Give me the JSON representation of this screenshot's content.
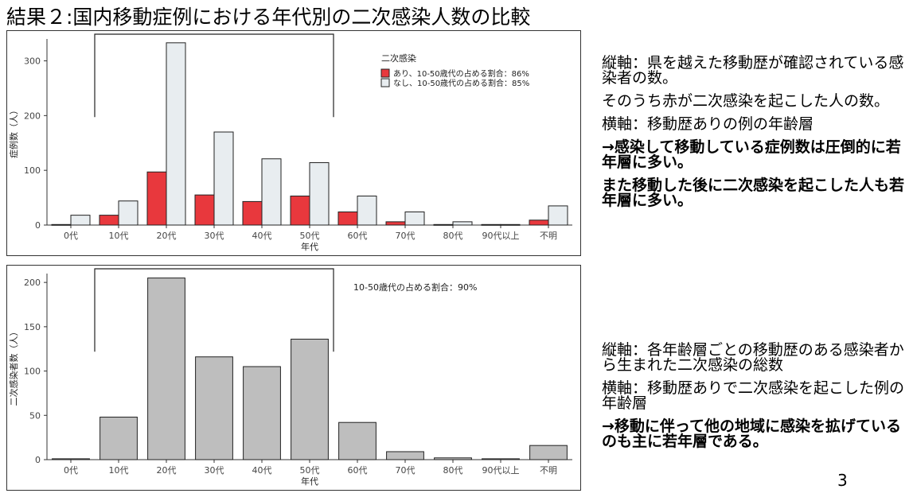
{
  "slide": {
    "title": "結果２:国内移動症例における年代別の二次感染人数の比較",
    "page_number": "3"
  },
  "descriptions": {
    "top": [
      {
        "text": "縦軸：県を越えた移動歴が確認されている感染者の数。",
        "bold": false
      },
      {
        "text": "そのうち赤が二次感染を起こした人の数。",
        "bold": false
      },
      {
        "text": "横軸：移動歴ありの例の年齢層",
        "bold": false
      },
      {
        "text": "→感染して移動している症例数は圧倒的に若年層に多い。",
        "bold": true
      },
      {
        "text": "また移動した後に二次感染を起こした人も若年層に多い。",
        "bold": true
      }
    ],
    "bottom": [
      {
        "text": "縦軸：各年齢層ごとの移動歴のある感染者から生まれた二次感染の総数",
        "bold": false
      },
      {
        "text": "横軸：移動歴ありで二次感染を起こした例の年齢層",
        "bold": false
      },
      {
        "text": "→移動に伴って他の地域に感染を拡げているのも主に若年層である。",
        "bold": true
      }
    ]
  },
  "chart_data": [
    {
      "type": "bar",
      "categories": [
        "0代",
        "10代",
        "20代",
        "30代",
        "40代",
        "50代",
        "60代",
        "70代",
        "80代",
        "90代以上",
        "不明"
      ],
      "series": [
        {
          "name": "あり、10-50歳代の占める割合：86%",
          "color": "#e8383d",
          "values": [
            1,
            18,
            97,
            55,
            43,
            53,
            24,
            6,
            1,
            1,
            9
          ]
        },
        {
          "name": "なし、10-50歳代の占める割合：85%",
          "color": "#e8edf0",
          "values": [
            18,
            44,
            333,
            170,
            121,
            114,
            53,
            24,
            6,
            1,
            35
          ]
        }
      ],
      "legend_title": "二次感染",
      "legend_position": "top-right",
      "xlabel": "年代",
      "ylabel": "症例数（人）",
      "ylim": [
        0,
        340
      ],
      "yticks": [
        0,
        100,
        200,
        300
      ],
      "bracket": {
        "from": "10代",
        "to": "50代"
      }
    },
    {
      "type": "bar",
      "categories": [
        "0代",
        "10代",
        "20代",
        "30代",
        "40代",
        "50代",
        "60代",
        "70代",
        "80代",
        "90代以上",
        "不明"
      ],
      "series": [
        {
          "color": "#bebebe",
          "values": [
            1,
            48,
            205,
            116,
            105,
            136,
            42,
            9,
            2,
            1,
            16
          ]
        }
      ],
      "annotation": "10-50歳代の占める割合：90%",
      "xlabel": "年代",
      "ylabel": "二次感染者数（人）",
      "ylim": [
        0,
        210
      ],
      "yticks": [
        0,
        50,
        100,
        150,
        200
      ],
      "bracket": {
        "from": "10代",
        "to": "50代"
      }
    }
  ]
}
